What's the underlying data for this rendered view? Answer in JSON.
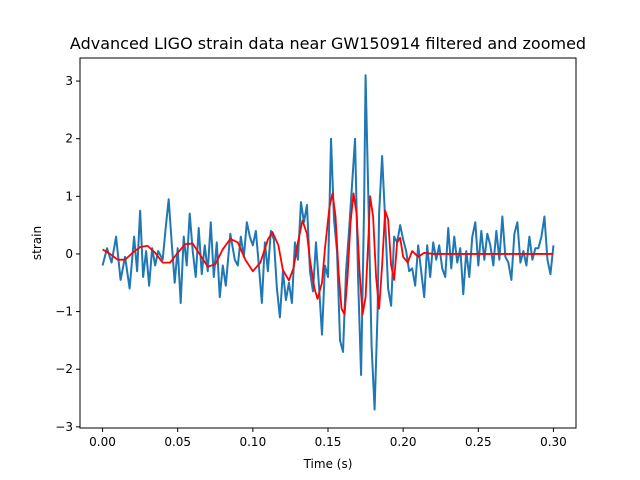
{
  "chart_data": {
    "type": "line",
    "title": "Advanced LIGO strain data near GW150914 filtered and zoomed",
    "xlabel": "Time (s)",
    "ylabel": "strain",
    "xlim": [
      -0.015,
      0.315
    ],
    "ylim": [
      -3.02,
      3.4
    ],
    "grid": false,
    "legend": "none",
    "xticks": [
      {
        "value": 0.0,
        "label": "0.00"
      },
      {
        "value": 0.05,
        "label": "0.05"
      },
      {
        "value": 0.1,
        "label": "0.10"
      },
      {
        "value": 0.15,
        "label": "0.15"
      },
      {
        "value": 0.2,
        "label": "0.20"
      },
      {
        "value": 0.25,
        "label": "0.25"
      },
      {
        "value": 0.3,
        "label": "0.30"
      }
    ],
    "yticks": [
      {
        "value": -3,
        "label": "−3"
      },
      {
        "value": -2,
        "label": "−2"
      },
      {
        "value": -1,
        "label": "−1"
      },
      {
        "value": 0,
        "label": "0"
      },
      {
        "value": 1,
        "label": "1"
      },
      {
        "value": 2,
        "label": "2"
      },
      {
        "value": 3,
        "label": "3"
      }
    ],
    "series": [
      {
        "color": "#1f77b4",
        "points": [
          [
            0.0,
            -0.2
          ],
          [
            0.003,
            0.1
          ],
          [
            0.006,
            -0.15
          ],
          [
            0.009,
            0.3
          ],
          [
            0.012,
            -0.45
          ],
          [
            0.015,
            -0.05
          ],
          [
            0.018,
            -0.6
          ],
          [
            0.021,
            0.3
          ],
          [
            0.023,
            -0.3
          ],
          [
            0.025,
            0.75
          ],
          [
            0.027,
            -0.4
          ],
          [
            0.029,
            0.05
          ],
          [
            0.031,
            -0.55
          ],
          [
            0.033,
            0.1
          ],
          [
            0.035,
            -0.2
          ],
          [
            0.037,
            0.05
          ],
          [
            0.04,
            -0.1
          ],
          [
            0.042,
            0.45
          ],
          [
            0.044,
            0.95
          ],
          [
            0.046,
            0.2
          ],
          [
            0.048,
            -0.5
          ],
          [
            0.05,
            0.1
          ],
          [
            0.052,
            -0.85
          ],
          [
            0.054,
            0.3
          ],
          [
            0.056,
            -0.2
          ],
          [
            0.058,
            0.7
          ],
          [
            0.06,
            0.05
          ],
          [
            0.062,
            -0.4
          ],
          [
            0.064,
            0.45
          ],
          [
            0.066,
            -0.35
          ],
          [
            0.068,
            0.15
          ],
          [
            0.07,
            -0.3
          ],
          [
            0.072,
            0.55
          ],
          [
            0.074,
            -0.4
          ],
          [
            0.076,
            0.2
          ],
          [
            0.078,
            -0.75
          ],
          [
            0.08,
            -0.2
          ],
          [
            0.082,
            -0.55
          ],
          [
            0.085,
            0.35
          ],
          [
            0.088,
            -0.1
          ],
          [
            0.09,
            -0.2
          ],
          [
            0.092,
            0.3
          ],
          [
            0.094,
            -0.05
          ],
          [
            0.096,
            0.55
          ],
          [
            0.098,
            0.3
          ],
          [
            0.1,
            0.15
          ],
          [
            0.102,
            0.4
          ],
          [
            0.104,
            -0.2
          ],
          [
            0.106,
            -0.85
          ],
          [
            0.108,
            0.2
          ],
          [
            0.11,
            -0.3
          ],
          [
            0.112,
            0.4
          ],
          [
            0.114,
            0.25
          ],
          [
            0.116,
            -0.6
          ],
          [
            0.118,
            -1.1
          ],
          [
            0.12,
            -0.3
          ],
          [
            0.122,
            -0.8
          ],
          [
            0.124,
            -0.5
          ],
          [
            0.126,
            -0.85
          ],
          [
            0.128,
            0.2
          ],
          [
            0.13,
            -0.1
          ],
          [
            0.132,
            0.9
          ],
          [
            0.134,
            0.55
          ],
          [
            0.136,
            0.85
          ],
          [
            0.138,
            -0.3
          ],
          [
            0.14,
            -0.65
          ],
          [
            0.142,
            0.2
          ],
          [
            0.144,
            -0.55
          ],
          [
            0.146,
            -1.4
          ],
          [
            0.148,
            -0.2
          ],
          [
            0.15,
            -0.4
          ],
          [
            0.152,
            2.0
          ],
          [
            0.154,
            0.6
          ],
          [
            0.156,
            0.05
          ],
          [
            0.158,
            -1.5
          ],
          [
            0.16,
            -1.7
          ],
          [
            0.162,
            -0.3
          ],
          [
            0.164,
            0.4
          ],
          [
            0.166,
            1.2
          ],
          [
            0.168,
            2.0
          ],
          [
            0.17,
            -0.4
          ],
          [
            0.172,
            -2.1
          ],
          [
            0.174,
            0.8
          ],
          [
            0.175,
            3.1
          ],
          [
            0.177,
            0.8
          ],
          [
            0.179,
            -1.6
          ],
          [
            0.181,
            -2.7
          ],
          [
            0.183,
            -1.0
          ],
          [
            0.184,
            0.7
          ],
          [
            0.186,
            1.7
          ],
          [
            0.188,
            0.6
          ],
          [
            0.19,
            -0.6
          ],
          [
            0.192,
            -0.9
          ],
          [
            0.194,
            0.3
          ],
          [
            0.196,
            0.2
          ],
          [
            0.198,
            0.5
          ],
          [
            0.2,
            0.25
          ],
          [
            0.202,
            0.05
          ],
          [
            0.204,
            -0.3
          ],
          [
            0.206,
            -0.25
          ],
          [
            0.208,
            -0.55
          ],
          [
            0.21,
            0.15
          ],
          [
            0.212,
            -0.3
          ],
          [
            0.214,
            -0.75
          ],
          [
            0.216,
            0.15
          ],
          [
            0.218,
            -0.4
          ],
          [
            0.22,
            0.2
          ],
          [
            0.222,
            -0.1
          ],
          [
            0.224,
            0.15
          ],
          [
            0.226,
            -0.25
          ],
          [
            0.228,
            -0.4
          ],
          [
            0.23,
            0.45
          ],
          [
            0.232,
            -0.25
          ],
          [
            0.234,
            0.3
          ],
          [
            0.236,
            -0.15
          ],
          [
            0.238,
            0.1
          ],
          [
            0.24,
            -0.7
          ],
          [
            0.242,
            0.05
          ],
          [
            0.244,
            -0.4
          ],
          [
            0.246,
            0.3
          ],
          [
            0.248,
            0.55
          ],
          [
            0.25,
            -0.2
          ],
          [
            0.252,
            0.4
          ],
          [
            0.254,
            -0.1
          ],
          [
            0.256,
            0.35
          ],
          [
            0.258,
            0.15
          ],
          [
            0.26,
            -0.2
          ],
          [
            0.262,
            0.4
          ],
          [
            0.264,
            -0.1
          ],
          [
            0.266,
            0.65
          ],
          [
            0.268,
            -0.05
          ],
          [
            0.27,
            -0.15
          ],
          [
            0.272,
            -0.45
          ],
          [
            0.274,
            0.35
          ],
          [
            0.276,
            0.55
          ],
          [
            0.278,
            -0.15
          ],
          [
            0.28,
            0.05
          ],
          [
            0.282,
            -0.2
          ],
          [
            0.284,
            0.3
          ],
          [
            0.286,
            -0.1
          ],
          [
            0.288,
            0.1
          ],
          [
            0.29,
            0.1
          ],
          [
            0.292,
            0.3
          ],
          [
            0.294,
            0.65
          ],
          [
            0.296,
            -0.1
          ],
          [
            0.298,
            -0.35
          ],
          [
            0.3,
            0.15
          ]
        ]
      },
      {
        "color": "#ff0000",
        "points": [
          [
            0.0,
            0.08
          ],
          [
            0.005,
            0.0
          ],
          [
            0.01,
            -0.1
          ],
          [
            0.015,
            -0.1
          ],
          [
            0.02,
            0.02
          ],
          [
            0.025,
            0.12
          ],
          [
            0.03,
            0.14
          ],
          [
            0.035,
            0.02
          ],
          [
            0.04,
            -0.15
          ],
          [
            0.045,
            -0.15
          ],
          [
            0.05,
            0.02
          ],
          [
            0.055,
            0.17
          ],
          [
            0.06,
            0.18
          ],
          [
            0.065,
            -0.02
          ],
          [
            0.07,
            -0.22
          ],
          [
            0.075,
            -0.18
          ],
          [
            0.08,
            0.08
          ],
          [
            0.085,
            0.26
          ],
          [
            0.09,
            0.2
          ],
          [
            0.095,
            -0.1
          ],
          [
            0.1,
            -0.3
          ],
          [
            0.105,
            -0.15
          ],
          [
            0.11,
            0.25
          ],
          [
            0.113,
            0.38
          ],
          [
            0.117,
            0.15
          ],
          [
            0.12,
            -0.28
          ],
          [
            0.124,
            -0.46
          ],
          [
            0.127,
            -0.25
          ],
          [
            0.13,
            0.2
          ],
          [
            0.133,
            0.58
          ],
          [
            0.136,
            0.35
          ],
          [
            0.138,
            -0.1
          ],
          [
            0.141,
            -0.6
          ],
          [
            0.143,
            -0.78
          ],
          [
            0.146,
            -0.5
          ],
          [
            0.148,
            0.1
          ],
          [
            0.151,
            0.82
          ],
          [
            0.153,
            1.05
          ],
          [
            0.155,
            0.65
          ],
          [
            0.157,
            -0.3
          ],
          [
            0.159,
            -0.95
          ],
          [
            0.161,
            -1.05
          ],
          [
            0.163,
            -0.4
          ],
          [
            0.165,
            0.55
          ],
          [
            0.167,
            1.05
          ],
          [
            0.169,
            0.7
          ],
          [
            0.171,
            -0.3
          ],
          [
            0.173,
            -1.05
          ],
          [
            0.175,
            -0.75
          ],
          [
            0.177,
            0.35
          ],
          [
            0.178,
            1.0
          ],
          [
            0.18,
            0.65
          ],
          [
            0.182,
            -0.4
          ],
          [
            0.184,
            -0.95
          ],
          [
            0.186,
            -0.2
          ],
          [
            0.188,
            0.75
          ],
          [
            0.19,
            0.6
          ],
          [
            0.192,
            -0.2
          ],
          [
            0.194,
            -0.45
          ],
          [
            0.196,
            0.2
          ],
          [
            0.198,
            0.28
          ],
          [
            0.2,
            -0.05
          ],
          [
            0.203,
            -0.15
          ],
          [
            0.206,
            0.05
          ],
          [
            0.21,
            -0.05
          ],
          [
            0.214,
            0.02
          ],
          [
            0.22,
            0.0
          ],
          [
            0.24,
            0.0
          ],
          [
            0.26,
            0.0
          ],
          [
            0.28,
            0.0
          ],
          [
            0.3,
            0.0
          ]
        ]
      }
    ]
  }
}
